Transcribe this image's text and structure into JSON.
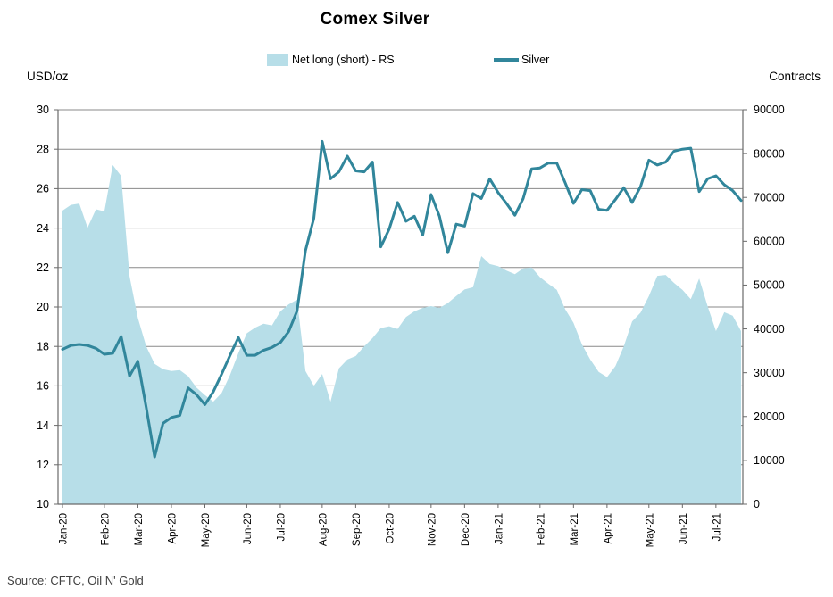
{
  "title": "Comex Silver",
  "legend": {
    "area_label": "Net long (short) - RS",
    "line_label": "Silver"
  },
  "axes": {
    "left_unit": "USD/oz",
    "right_unit": "Contracts"
  },
  "source": "Source: CFTC, Oil N' Gold",
  "colors": {
    "area_fill": "#B7DEE8",
    "line_stroke": "#31869B",
    "grid": "#8A8A8A",
    "axis": "#6A6A6A",
    "tick_text": "#000000",
    "background": "#FFFFFF"
  },
  "chart_data": {
    "type": "combo",
    "title": "Comex Silver",
    "frequency": "weekly",
    "x_tick_labels": [
      "Jan-20",
      "Feb-20",
      "Mar-20",
      "Apr-20",
      "May-20",
      "Jun-20",
      "Jul-20",
      "Aug-20",
      "Sep-20",
      "Oct-20",
      "Nov-20",
      "Dec-20",
      "Jan-21",
      "Feb-21",
      "Mar-21",
      "Apr-21",
      "May-21",
      "Jun-21",
      "Jul-21"
    ],
    "x_tick_data_index": [
      0,
      5,
      9,
      13,
      17,
      22,
      26,
      31,
      35,
      39,
      44,
      48,
      52,
      57,
      61,
      65,
      70,
      74,
      78
    ],
    "left_axis": {
      "label": "USD/oz",
      "min": 10,
      "max": 30,
      "ticks": [
        10,
        12,
        14,
        16,
        18,
        20,
        22,
        24,
        26,
        28,
        30
      ]
    },
    "right_axis": {
      "label": "Contracts",
      "min": 0,
      "max": 90000,
      "ticks": [
        0,
        10000,
        20000,
        30000,
        40000,
        50000,
        60000,
        70000,
        80000,
        90000
      ]
    },
    "grid": true,
    "legend_position": "top",
    "series": [
      {
        "name": "Net long (short) - RS",
        "type": "area",
        "axis": "right",
        "color": "#B7DEE8",
        "values": [
          67000,
          68300,
          68600,
          63100,
          67300,
          66800,
          77400,
          74900,
          52000,
          42500,
          36000,
          32000,
          30800,
          30400,
          30600,
          29200,
          26600,
          24900,
          23400,
          25400,
          29500,
          34500,
          39000,
          40300,
          41200,
          40800,
          44000,
          45600,
          46700,
          30400,
          27000,
          29700,
          23400,
          31000,
          33000,
          33800,
          36000,
          37900,
          40200,
          40600,
          40000,
          42700,
          44000,
          44800,
          45200,
          44800,
          45900,
          47500,
          49000,
          49500,
          56600,
          54800,
          54300,
          53300,
          52500,
          53800,
          54000,
          51800,
          50300,
          48900,
          44500,
          41400,
          36500,
          33000,
          30200,
          29000,
          31500,
          36000,
          41700,
          43700,
          47500,
          52100,
          52300,
          50500,
          48900,
          46800,
          51500,
          45200,
          39500,
          43800,
          43000,
          39500
        ]
      },
      {
        "name": "Silver",
        "type": "line",
        "axis": "left",
        "color": "#31869B",
        "stroke_width": 3,
        "values": [
          17.85,
          18.05,
          18.1,
          18.05,
          17.9,
          17.6,
          17.65,
          18.5,
          16.5,
          17.25,
          14.9,
          12.4,
          14.1,
          14.4,
          14.5,
          15.9,
          15.55,
          15.05,
          15.7,
          16.6,
          17.55,
          18.45,
          17.55,
          17.55,
          17.8,
          17.95,
          18.2,
          18.75,
          19.8,
          22.85,
          24.5,
          28.4,
          26.5,
          26.85,
          27.65,
          26.9,
          26.85,
          27.35,
          23.05,
          23.95,
          25.3,
          24.35,
          24.6,
          23.65,
          25.7,
          24.6,
          22.75,
          24.2,
          24.1,
          25.75,
          25.5,
          26.5,
          25.8,
          25.25,
          24.65,
          25.5,
          27.0,
          27.05,
          27.3,
          27.3,
          26.3,
          25.25,
          25.95,
          25.9,
          24.95,
          24.9,
          25.45,
          26.05,
          25.3,
          26.1,
          27.45,
          27.2,
          27.35,
          27.9,
          28.0,
          28.05,
          25.85,
          26.5,
          26.65,
          26.2,
          25.9,
          25.4
        ]
      }
    ]
  }
}
